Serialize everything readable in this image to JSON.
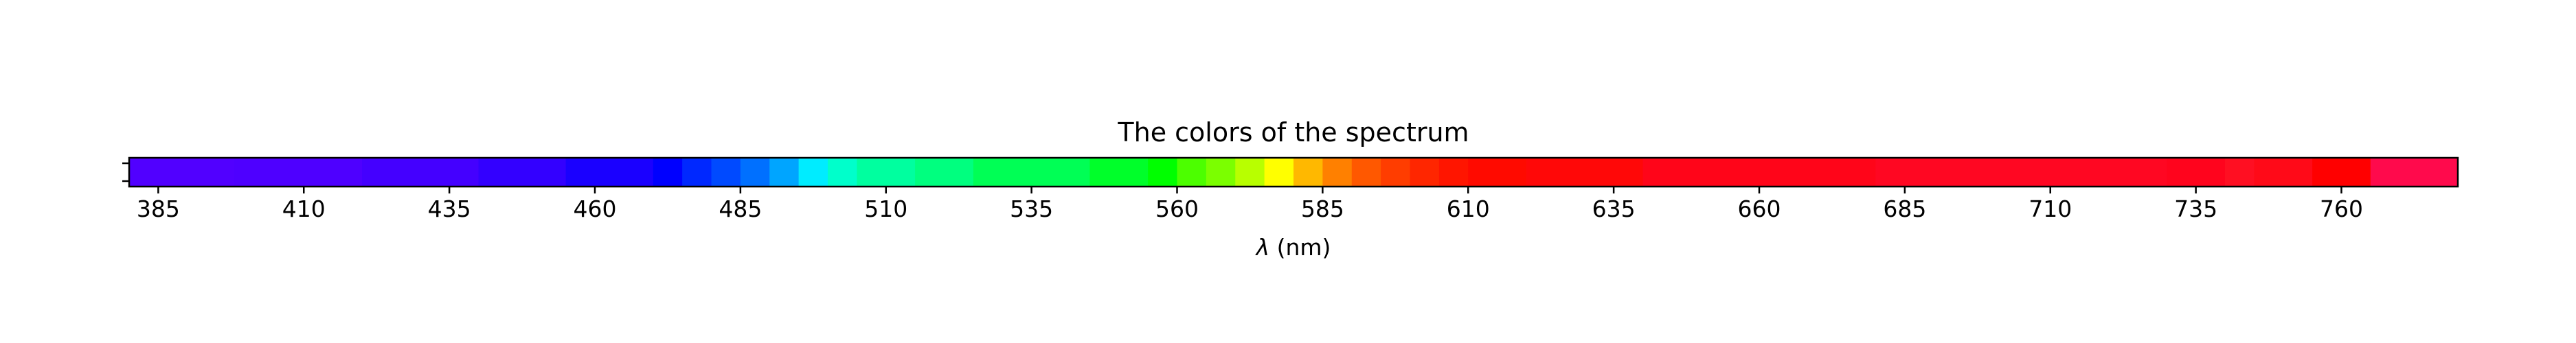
{
  "chart_data": {
    "type": "heatmap",
    "title": "The colors of the spectrum",
    "xlabel": "λ (nm)",
    "xlabel_symbol": "λ",
    "xlabel_unit": " (nm)",
    "x_range": [
      380,
      780
    ],
    "grid": false,
    "legend": "none",
    "x_ticks": [
      385,
      410,
      435,
      460,
      485,
      510,
      535,
      560,
      585,
      610,
      635,
      660,
      685,
      710,
      735,
      760
    ],
    "bands": [
      {
        "start": 380,
        "end": 398,
        "color": "#5100ff"
      },
      {
        "start": 398,
        "end": 420,
        "color": "#4e00ff"
      },
      {
        "start": 420,
        "end": 440,
        "color": "#4400ff"
      },
      {
        "start": 440,
        "end": 455,
        "color": "#3300ff"
      },
      {
        "start": 455,
        "end": 470,
        "color": "#1a00ff"
      },
      {
        "start": 470,
        "end": 475,
        "color": "#0000ff"
      },
      {
        "start": 475,
        "end": 480,
        "color": "#0028ff"
      },
      {
        "start": 480,
        "end": 485,
        "color": "#004aff"
      },
      {
        "start": 485,
        "end": 490,
        "color": "#0070ff"
      },
      {
        "start": 490,
        "end": 495,
        "color": "#00a5ff"
      },
      {
        "start": 495,
        "end": 500,
        "color": "#00ecff"
      },
      {
        "start": 500,
        "end": 505,
        "color": "#00ffcb"
      },
      {
        "start": 505,
        "end": 515,
        "color": "#00ff9f"
      },
      {
        "start": 515,
        "end": 525,
        "color": "#00ff7f"
      },
      {
        "start": 525,
        "end": 545,
        "color": "#00ff55"
      },
      {
        "start": 545,
        "end": 555,
        "color": "#00ff2a"
      },
      {
        "start": 555,
        "end": 560,
        "color": "#00ff00"
      },
      {
        "start": 560,
        "end": 565,
        "color": "#4cff00"
      },
      {
        "start": 565,
        "end": 570,
        "color": "#7bff00"
      },
      {
        "start": 570,
        "end": 575,
        "color": "#b8ff00"
      },
      {
        "start": 575,
        "end": 580,
        "color": "#ffff00"
      },
      {
        "start": 580,
        "end": 585,
        "color": "#ffb800"
      },
      {
        "start": 585,
        "end": 590,
        "color": "#ff8000"
      },
      {
        "start": 590,
        "end": 595,
        "color": "#ff5800"
      },
      {
        "start": 595,
        "end": 600,
        "color": "#ff3d00"
      },
      {
        "start": 600,
        "end": 605,
        "color": "#ff2600"
      },
      {
        "start": 605,
        "end": 610,
        "color": "#ff1500"
      },
      {
        "start": 610,
        "end": 620,
        "color": "#ff0a00"
      },
      {
        "start": 620,
        "end": 640,
        "color": "#ff0808"
      },
      {
        "start": 640,
        "end": 680,
        "color": "#ff0519"
      },
      {
        "start": 680,
        "end": 730,
        "color": "#ff0722"
      },
      {
        "start": 730,
        "end": 740,
        "color": "#ff041d"
      },
      {
        "start": 740,
        "end": 745,
        "color": "#ff0f22"
      },
      {
        "start": 745,
        "end": 755,
        "color": "#ff0a18"
      },
      {
        "start": 755,
        "end": 765,
        "color": "#ff0000"
      },
      {
        "start": 765,
        "end": 780,
        "color": "#ff0a4c"
      }
    ]
  }
}
